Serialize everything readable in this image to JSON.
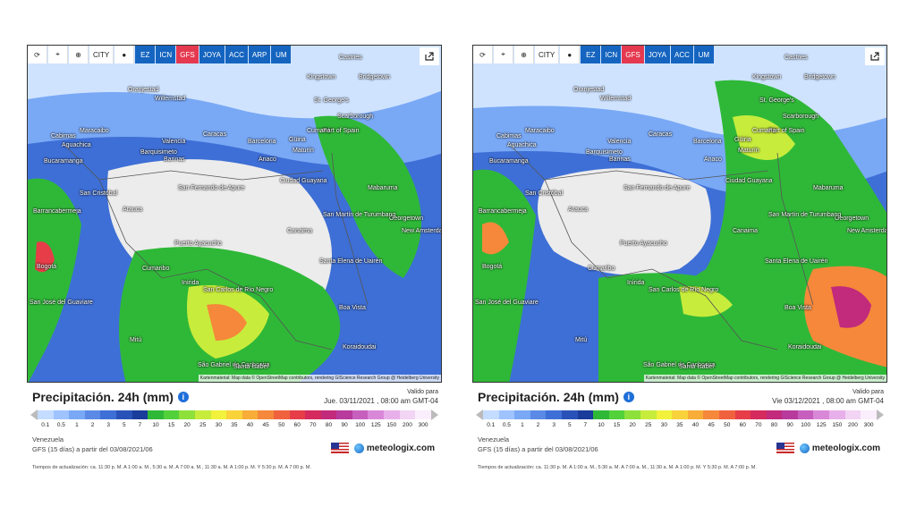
{
  "panels": [
    {
      "toolbar": {
        "reload_icon": "reload-icon",
        "location_icon": "pin-icon",
        "zoom_icon": "zoom-icon",
        "city_label": "CITY",
        "layer_icon": "circle-icon",
        "models": [
          "EZ",
          "ICN",
          "GFS",
          "JOYA",
          "ACC",
          "ARP",
          "UM"
        ],
        "active_model": "GFS",
        "share_icon": "share-icon"
      },
      "cities": [
        "Castries",
        "Kingstown",
        "Bridgetown",
        "Oranjestad",
        "Willemstad",
        "St. George's",
        "Scarborough",
        "Port of Spain",
        "Maracaibo",
        "Caracas",
        "Valencia",
        "Barcelona",
        "Güiria",
        "Maturín",
        "Barquisimeto",
        "Barinas",
        "Anaco",
        "Cumaná",
        "Cabimas",
        "Aguachica",
        "Bucaramanga",
        "San Cristóbal",
        "Barrancabermeja",
        "Ciudad Guayana",
        "Mabaruma",
        "San Fernando de Apure",
        "Georgetown",
        "New Amsterdam",
        "Arauca",
        "San Martín de Turumbang",
        "Puerto Ayacucho",
        "Canaima",
        "Bogotá",
        "Cumaribo",
        "Santa Elena de Uairén",
        "Inírida",
        "San José del Guaviare",
        "San Carlos de Río Negro",
        "Boa Vista",
        "Mitú",
        "Koraidoudai",
        "São Gabriel da Cachoeira",
        "Santa Isabel"
      ],
      "attribution": "Kartenmaterial: Map data © OpenStreetMap contributors, rendering GIScience Research Group @ Heidelberg University",
      "legend_title": "Precipitación. 24h (mm)",
      "info_icon": "i",
      "valid_label": "Valido para",
      "valid_date": "Jue. 03/11/2021 , 08:00 am GMT-04",
      "region": "Venezuela",
      "model_run": "GFS (15 días) a partir del 03/08/2021/06",
      "brand": "meteologix.com",
      "updates": "Tiempos de actualización: ca. 11:30 p. M. A 1:00 a. M., 5:30 a. M. A 7:00 a. M., 11:30 a. M. A 1:00 p. M. Y 5:30 p. M. A 7:00 p. M."
    },
    {
      "toolbar": {
        "reload_icon": "reload-icon",
        "location_icon": "pin-icon",
        "zoom_icon": "zoom-icon",
        "city_label": "CITY",
        "layer_icon": "circle-icon",
        "models": [
          "EZ",
          "ICN",
          "GFS",
          "JOYA",
          "ACC",
          "UM"
        ],
        "active_model": "GFS",
        "share_icon": "share-icon"
      },
      "cities": [
        "Castries",
        "Kingstown",
        "Bridgetown",
        "Oranjestad",
        "Willemstad",
        "St. George's",
        "Scarborough",
        "Port of Spain",
        "Maracaibo",
        "Caracas",
        "Valencia",
        "Barcelona",
        "Güiria",
        "Maturín",
        "Barquisimeto",
        "Barinas",
        "Anaco",
        "Cumaná",
        "Cabimas",
        "Aguachica",
        "Bucaramanga",
        "San Cristóbal",
        "Barrancabermeja",
        "Ciudad Guayana",
        "Mabaruma",
        "San Fernando de Apure",
        "Georgetown",
        "New Amsterdam",
        "Arauca",
        "San Martín de Turumbang",
        "Puerto Ayacucho",
        "Canaima",
        "Bogotá",
        "Cumaribo",
        "Santa Elena de Uairén",
        "Inírida",
        "San José del Guaviare",
        "San Carlos de Río Negro",
        "Boa Vista",
        "Mitú",
        "Koraidoudai",
        "São Gabriel da Cachoeira",
        "Santa Isabel"
      ],
      "attribution": "Kartenmaterial: Map data © OpenStreetMap contributors, rendering GIScience Research Group @ Heidelberg University",
      "legend_title": "Precipitación. 24h (mm)",
      "info_icon": "i",
      "valid_label": "Valido para",
      "valid_date": "Vie 03/12/2021 , 08:00 am GMT-04",
      "region": "Venezuela",
      "model_run": "GFS (15 días) a partir del 03/08/2021/06",
      "brand": "meteologix.com",
      "updates": "Tiempos de actualización: ca. 11:30 p. M. A 1:00 a. M., 5:30 a. M. A 7:00 a. M., 11:30 a. M. A 1:00 p. M. Y 5:30 p. M. A 7:00 p. M."
    }
  ],
  "scale": {
    "ticks": [
      "0.1",
      "0.5",
      "1",
      "2",
      "3",
      "5",
      "7",
      "10",
      "15",
      "20",
      "25",
      "30",
      "35",
      "40",
      "45",
      "50",
      "60",
      "70",
      "80",
      "90",
      "100",
      "125",
      "150",
      "200",
      "300"
    ],
    "colors": [
      "#c3dcff",
      "#9ec3ff",
      "#79a8f5",
      "#5a8ae6",
      "#3e6fd6",
      "#2852b8",
      "#1a3c9a",
      "#2fb838",
      "#52d13a",
      "#8ee03b",
      "#c8ec3c",
      "#f2f23c",
      "#fad23a",
      "#f7ad37",
      "#f5883a",
      "#f0623e",
      "#e63d48",
      "#d42a5e",
      "#c22a7c",
      "#b83a9c",
      "#c75fbf",
      "#d988d8",
      "#e8b0ea",
      "#f2d4f4",
      "#fbeefc"
    ]
  }
}
